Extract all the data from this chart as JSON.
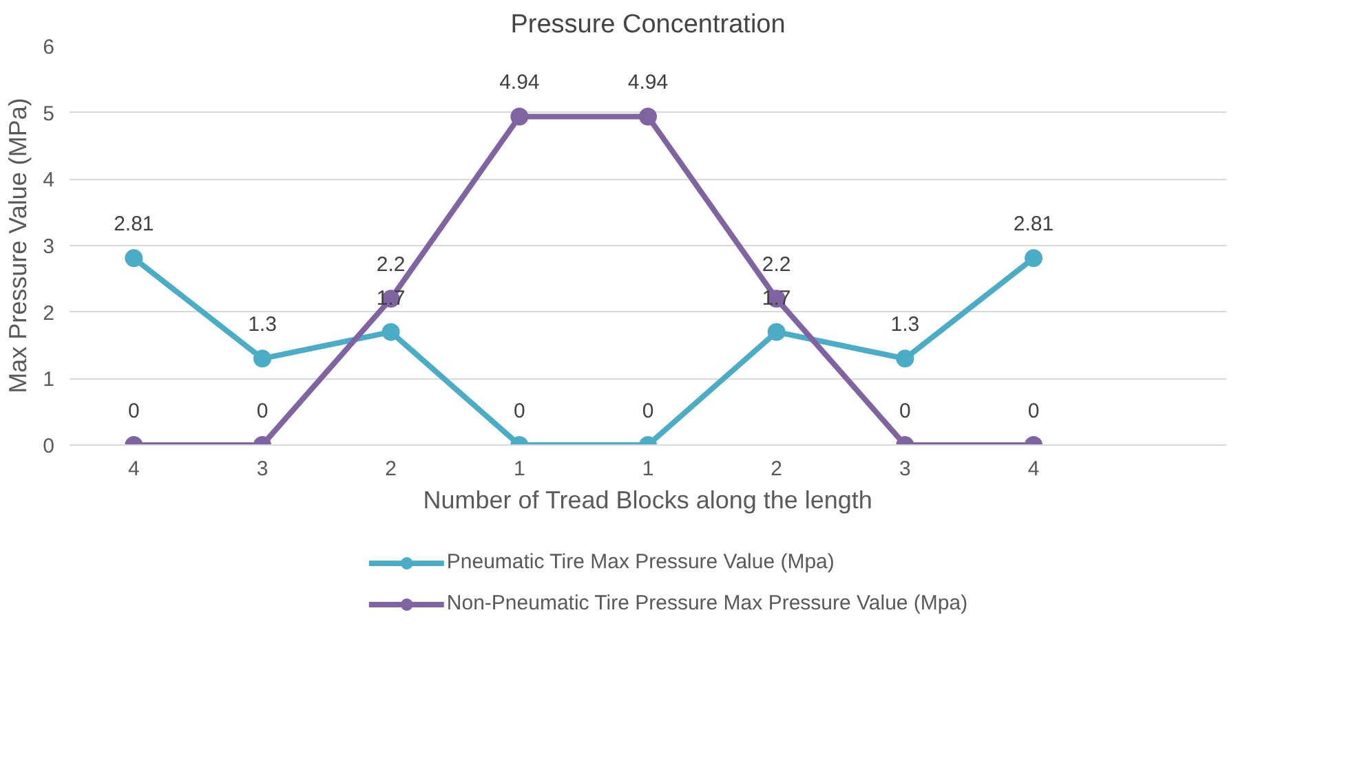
{
  "chart_data": {
    "type": "line",
    "title": "Pressure Concentration",
    "xlabel": "Number of Tread Blocks along the length",
    "ylabel": "Max Pressure Value (MPa)",
    "categories": [
      "4",
      "3",
      "2",
      "1",
      "1",
      "2",
      "3",
      "4"
    ],
    "series": [
      {
        "name": "Pneumatic Tire Max Pressure Value (Mpa)",
        "color": "#4bacc6",
        "values": [
          2.81,
          1.3,
          1.7,
          0,
          0,
          1.7,
          1.3,
          2.81
        ]
      },
      {
        "name": "Non-Pneumatic Tire Pressure Max Pressure Value (Mpa)",
        "color": "#8064a2",
        "values": [
          0,
          0,
          2.2,
          4.94,
          4.94,
          2.2,
          0,
          0
        ]
      }
    ],
    "ylim": [
      0,
      6
    ],
    "yticks": [
      0,
      1,
      2,
      3,
      4,
      5,
      6
    ],
    "grid": "y",
    "legend": "bottom",
    "marker": "circle",
    "data_labels": true
  }
}
